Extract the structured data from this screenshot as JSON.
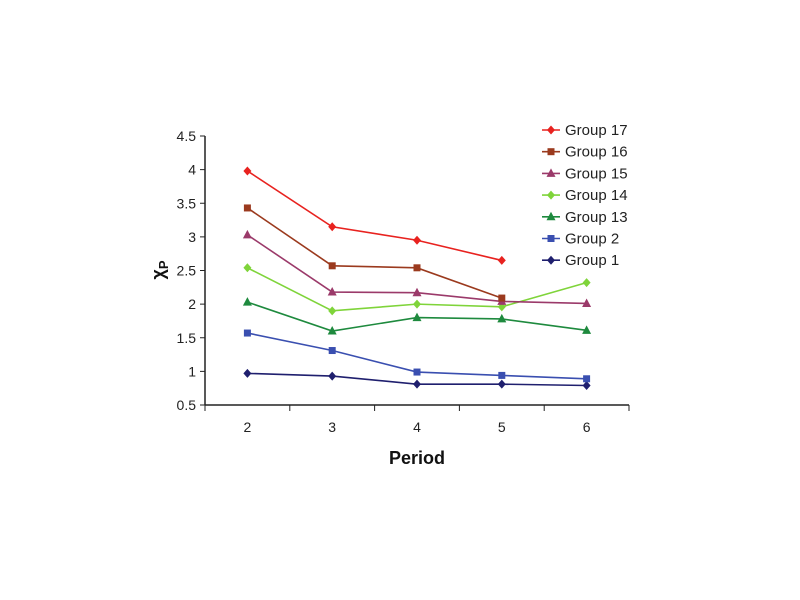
{
  "chart_data": {
    "type": "line",
    "xlabel": "Period",
    "ylabel": "χ",
    "ylabel_sub": "P",
    "categories": [
      "2",
      "3",
      "4",
      "5",
      "6"
    ],
    "ylim": [
      0.5,
      4.5
    ],
    "yticks": [
      "0.5",
      "1",
      "1.5",
      "2",
      "2.5",
      "3",
      "3.5",
      "4",
      "4.5"
    ],
    "grid": false,
    "legend_position": "top-right",
    "series": [
      {
        "name": "Group 17",
        "color": "#e8221f",
        "marker": "diamond",
        "values": [
          3.98,
          3.15,
          2.95,
          2.65,
          null
        ]
      },
      {
        "name": "Group 16",
        "color": "#9b3a1e",
        "marker": "square",
        "values": [
          3.43,
          2.57,
          2.54,
          2.09,
          null
        ]
      },
      {
        "name": "Group 15",
        "color": "#9b3a6a",
        "marker": "triangle",
        "values": [
          3.03,
          2.18,
          2.17,
          2.04,
          2.01
        ]
      },
      {
        "name": "Group 14",
        "color": "#7fd43a",
        "marker": "diamond",
        "values": [
          2.54,
          1.9,
          2.0,
          1.96,
          2.32
        ]
      },
      {
        "name": "Group 13",
        "color": "#1e8a3e",
        "marker": "triangle",
        "values": [
          2.03,
          1.6,
          1.8,
          1.78,
          1.61
        ]
      },
      {
        "name": "Group 2",
        "color": "#3a4fb0",
        "marker": "square",
        "values": [
          1.57,
          1.31,
          0.99,
          0.94,
          0.89
        ]
      },
      {
        "name": "Group 1",
        "color": "#1f1f6e",
        "marker": "diamond",
        "values": [
          0.97,
          0.93,
          0.81,
          0.81,
          0.79
        ]
      }
    ]
  }
}
